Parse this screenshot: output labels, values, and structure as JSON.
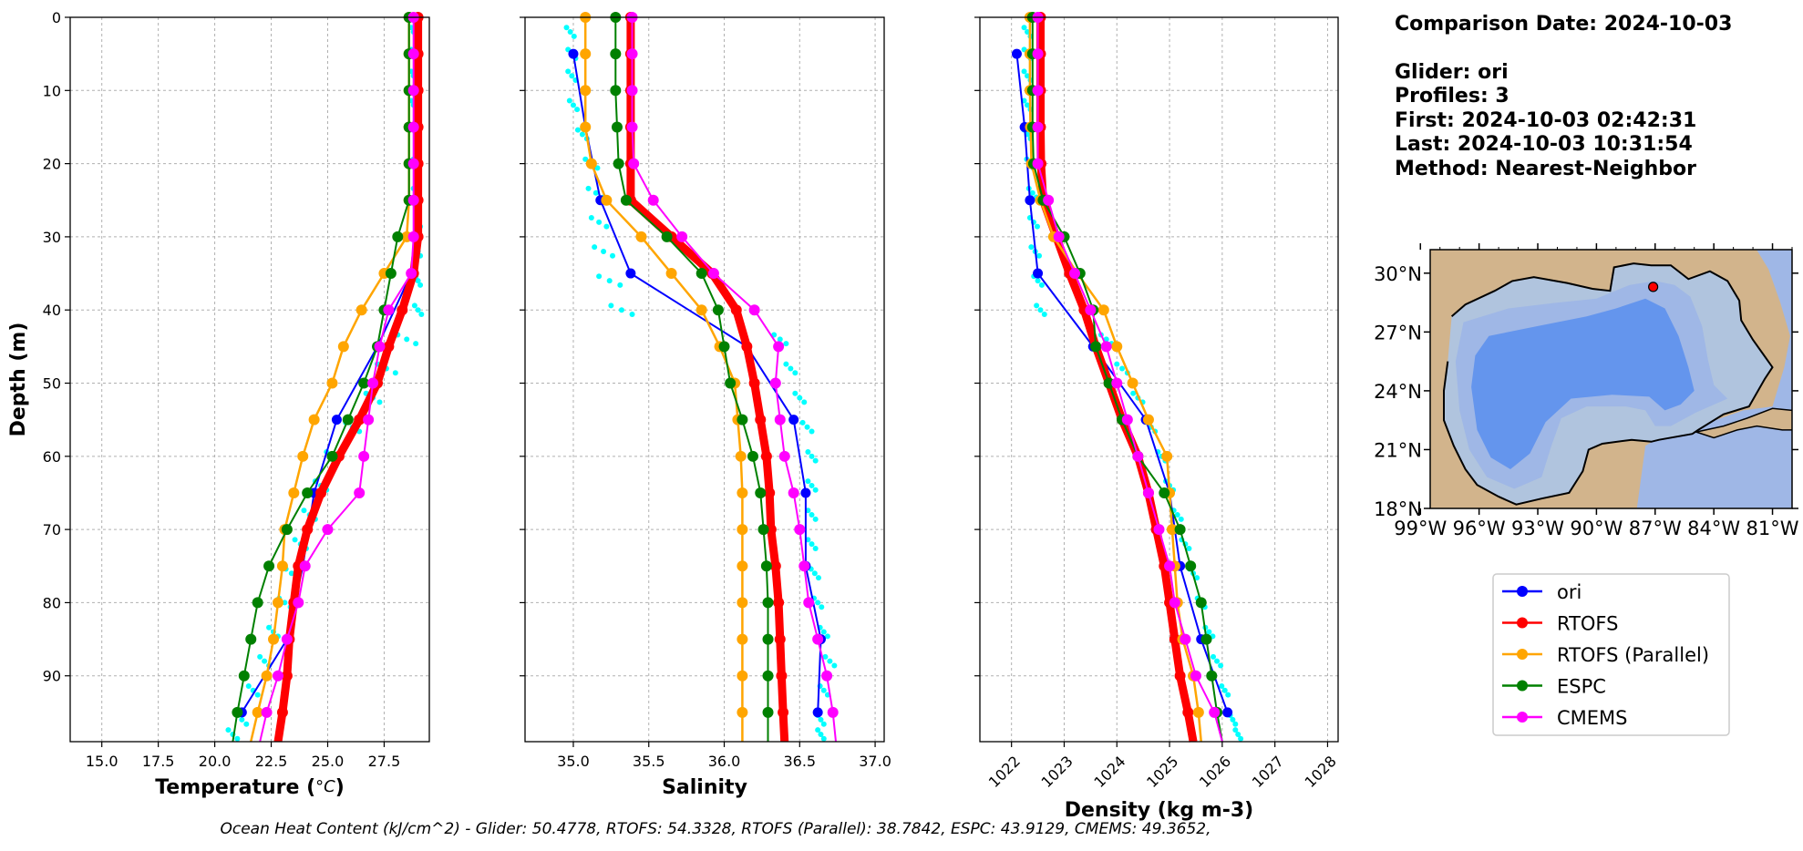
{
  "info": {
    "comparison_date": "Comparison Date: 2024-10-03",
    "glider": "Glider: ori",
    "profiles": "Profiles: 3",
    "first": "First: 2024-10-03 02:42:31",
    "last": "Last: 2024-10-03 10:31:54",
    "method": "Method: Nearest-Neighbor"
  },
  "footer": "Ocean Heat Content (kJ/cm^2) - Glider: 50.4778,  RTOFS: 54.3328,  RTOFS (Parallel): 38.7842,  ESPC: 43.9129,  CMEMS: 49.3652,",
  "colors": {
    "ori": "#0000ff",
    "RTOFS": "#ff0000",
    "RTOFS (Parallel)": "#ffa500",
    "ESPC": "#008000",
    "CMEMS": "#ff00ff",
    "glider_raw": "#00ffff",
    "land": "#d2b48c",
    "shelf": "#b0c4de",
    "mid": "#9fb7e6",
    "deep": "#6495ed"
  },
  "legend": [
    "ori",
    "RTOFS",
    "RTOFS (Parallel)",
    "ESPC",
    "CMEMS"
  ],
  "map": {
    "lat_ticks": [
      "30°N",
      "27°N",
      "24°N",
      "21°N",
      "18°N"
    ],
    "lon_ticks": [
      "99°W",
      "96°W",
      "93°W",
      "90°W",
      "87°W",
      "84°W",
      "81°W"
    ],
    "lon_range": [
      -98.5,
      -80
    ],
    "lat_range": [
      18,
      31.2
    ],
    "glider_position": [
      -87.1,
      29.3
    ]
  },
  "chart_data": [
    {
      "type": "line",
      "xlabel": "Temperature (°C)",
      "ylabel": "Depth (m)",
      "xlim": [
        13.6,
        29.5
      ],
      "ylim": [
        99,
        0
      ],
      "xticks": [
        "15.0",
        "17.5",
        "20.0",
        "22.5",
        "25.0",
        "27.5"
      ],
      "yticks": [
        "0",
        "10",
        "20",
        "30",
        "40",
        "50",
        "60",
        "70",
        "80",
        "90"
      ],
      "depth": [
        0,
        5,
        10,
        15,
        20,
        25,
        30,
        35,
        40,
        45,
        50,
        55,
        60,
        65,
        70,
        75,
        80,
        85,
        90,
        95,
        99
      ],
      "series": [
        {
          "name": "ori",
          "depth": [
            35,
            45,
            55,
            65,
            75,
            85,
            95
          ],
          "values": [
            28.7,
            27.2,
            25.4,
            24.4,
            23.9,
            23.2,
            21.2
          ]
        },
        {
          "name": "RTOFS",
          "values": [
            29.0,
            29.0,
            29.0,
            29.0,
            29.0,
            29.0,
            29.0,
            28.8,
            28.3,
            27.7,
            27.2,
            26.4,
            25.5,
            24.7,
            24.1,
            23.7,
            23.5,
            23.3,
            23.2,
            23.0,
            22.8
          ]
        },
        {
          "name": "RTOFS (Parallel)",
          "values": [
            28.6,
            28.6,
            28.6,
            28.6,
            28.6,
            28.6,
            28.5,
            27.5,
            26.5,
            25.7,
            25.2,
            24.4,
            23.9,
            23.5,
            23.1,
            23.0,
            22.8,
            22.6,
            22.3,
            21.9,
            21.6
          ]
        },
        {
          "name": "ESPC",
          "values": [
            28.6,
            28.6,
            28.6,
            28.6,
            28.6,
            28.6,
            28.1,
            27.8,
            27.5,
            27.2,
            26.6,
            25.9,
            25.2,
            24.1,
            23.2,
            22.4,
            21.9,
            21.6,
            21.3,
            21.0,
            20.8
          ]
        },
        {
          "name": "CMEMS",
          "values": [
            28.8,
            28.8,
            28.8,
            28.8,
            28.8,
            28.8,
            28.8,
            28.7,
            27.7,
            27.3,
            27.0,
            26.8,
            26.6,
            26.4,
            25.0,
            24.0,
            23.7,
            23.2,
            22.8,
            22.3,
            22.0
          ]
        }
      ],
      "glider_raw": {
        "depth": [
          2,
          5,
          8,
          12,
          16,
          20,
          24,
          28,
          32,
          36,
          40,
          44,
          48,
          52,
          56,
          60,
          64,
          68,
          72,
          76,
          80,
          84,
          88,
          92,
          96,
          98
        ],
        "values": [
          28.8,
          28.8,
          28.8,
          28.8,
          28.9,
          28.9,
          28.9,
          29.0,
          29.0,
          29.0,
          29.0,
          28.5,
          27.6,
          27.0,
          26.1,
          25.2,
          24.7,
          24.2,
          23.8,
          23.4,
          23.1,
          22.6,
          22.2,
          21.7,
          21.2,
          20.8
        ],
        "spread": [
          0.2,
          0.2,
          0.2,
          0.2,
          0.2,
          0.2,
          0.2,
          0.2,
          0.2,
          0.2,
          0.3,
          0.8,
          0.8,
          0.6,
          0.6,
          0.5,
          0.5,
          0.5,
          0.5,
          0.5,
          0.5,
          0.4,
          0.4,
          0.4,
          0.4,
          0.4
        ]
      }
    },
    {
      "type": "line",
      "xlabel": "Salinity",
      "ylabel": "",
      "xlim": [
        34.68,
        37.06
      ],
      "ylim": [
        99,
        0
      ],
      "xticks": [
        "35.0",
        "35.5",
        "36.0",
        "36.5",
        "37.0"
      ],
      "depth": [
        0,
        5,
        10,
        15,
        20,
        25,
        30,
        35,
        40,
        45,
        50,
        55,
        60,
        65,
        70,
        75,
        80,
        85,
        90,
        95,
        99
      ],
      "series": [
        {
          "name": "ori",
          "depth": [
            5,
            15,
            25,
            35,
            45,
            55,
            65,
            75,
            85,
            95
          ],
          "values": [
            35.0,
            35.08,
            35.18,
            35.38,
            36.15,
            36.46,
            36.54,
            36.54,
            36.64,
            36.62
          ]
        },
        {
          "name": "RTOFS",
          "values": [
            35.38,
            35.38,
            35.38,
            35.38,
            35.38,
            35.38,
            35.65,
            35.92,
            36.08,
            36.15,
            36.2,
            36.24,
            36.28,
            36.3,
            36.31,
            36.34,
            36.36,
            36.37,
            36.38,
            36.39,
            36.4
          ]
        },
        {
          "name": "RTOFS (Parallel)",
          "values": [
            35.08,
            35.08,
            35.08,
            35.08,
            35.12,
            35.22,
            35.45,
            35.65,
            35.85,
            35.97,
            36.07,
            36.09,
            36.11,
            36.12,
            36.12,
            36.12,
            36.12,
            36.12,
            36.12,
            36.12,
            36.12
          ]
        },
        {
          "name": "ESPC",
          "values": [
            35.28,
            35.28,
            35.28,
            35.29,
            35.3,
            35.35,
            35.62,
            35.85,
            35.96,
            36.0,
            36.04,
            36.12,
            36.19,
            36.24,
            36.26,
            36.28,
            36.29,
            36.29,
            36.29,
            36.29,
            36.29
          ]
        },
        {
          "name": "CMEMS",
          "values": [
            35.39,
            35.39,
            35.39,
            35.39,
            35.4,
            35.53,
            35.72,
            35.93,
            36.2,
            36.36,
            36.34,
            36.37,
            36.4,
            36.46,
            36.5,
            36.53,
            36.56,
            36.62,
            36.68,
            36.72,
            36.74
          ]
        }
      ],
      "glider_raw": {
        "depth": [
          2,
          5,
          8,
          12,
          16,
          20,
          24,
          28,
          32,
          36,
          40,
          44,
          48,
          52,
          56,
          60,
          64,
          68,
          72,
          76,
          80,
          84,
          88,
          92,
          96,
          98
        ],
        "values": [
          34.98,
          34.99,
          34.99,
          35.0,
          35.06,
          35.12,
          35.15,
          35.17,
          35.2,
          35.24,
          35.32,
          36.37,
          36.44,
          36.5,
          36.55,
          36.58,
          36.58,
          36.58,
          36.58,
          36.6,
          36.62,
          36.66,
          36.7,
          36.66,
          36.64,
          36.64
        ],
        "spread": [
          0.05,
          0.05,
          0.05,
          0.05,
          0.06,
          0.08,
          0.1,
          0.1,
          0.12,
          0.14,
          0.14,
          0.08,
          0.06,
          0.06,
          0.06,
          0.05,
          0.05,
          0.05,
          0.05,
          0.05,
          0.05,
          0.05,
          0.06,
          0.05,
          0.04,
          0.04
        ]
      }
    },
    {
      "type": "line",
      "xlabel": "Density (kg m-3)",
      "ylabel": "",
      "xlim": [
        1021.4,
        1028.2
      ],
      "ylim": [
        99,
        0
      ],
      "xticks": [
        "1022",
        "1023",
        "1024",
        "1025",
        "1026",
        "1027",
        "1028"
      ],
      "depth": [
        0,
        5,
        10,
        15,
        20,
        25,
        30,
        35,
        40,
        45,
        50,
        55,
        60,
        65,
        70,
        75,
        80,
        85,
        90,
        95,
        99
      ],
      "series": [
        {
          "name": "ori",
          "depth": [
            5,
            15,
            25,
            35,
            45,
            55,
            65,
            75,
            85,
            95
          ],
          "values": [
            1022.1,
            1022.25,
            1022.35,
            1022.5,
            1023.55,
            1024.55,
            1025.0,
            1025.2,
            1025.6,
            1026.1
          ]
        },
        {
          "name": "RTOFS",
          "values": [
            1022.55,
            1022.55,
            1022.55,
            1022.55,
            1022.56,
            1022.6,
            1022.85,
            1023.1,
            1023.38,
            1023.6,
            1023.85,
            1024.1,
            1024.4,
            1024.6,
            1024.75,
            1024.9,
            1025.0,
            1025.1,
            1025.2,
            1025.35,
            1025.45
          ]
        },
        {
          "name": "RTOFS (Parallel)",
          "values": [
            1022.35,
            1022.35,
            1022.35,
            1022.36,
            1022.38,
            1022.55,
            1022.8,
            1023.25,
            1023.75,
            1024.0,
            1024.3,
            1024.6,
            1024.95,
            1025.0,
            1025.05,
            1025.1,
            1025.15,
            1025.25,
            1025.45,
            1025.55,
            1025.6
          ]
        },
        {
          "name": "ESPC",
          "values": [
            1022.4,
            1022.4,
            1022.4,
            1022.4,
            1022.42,
            1022.6,
            1023.0,
            1023.3,
            1023.55,
            1023.6,
            1023.85,
            1024.1,
            1024.4,
            1024.9,
            1025.2,
            1025.4,
            1025.6,
            1025.7,
            1025.8,
            1025.9,
            1026.0
          ]
        },
        {
          "name": "CMEMS",
          "values": [
            1022.5,
            1022.5,
            1022.5,
            1022.5,
            1022.5,
            1022.7,
            1022.9,
            1023.2,
            1023.5,
            1023.8,
            1024.0,
            1024.2,
            1024.4,
            1024.6,
            1024.8,
            1025.0,
            1025.1,
            1025.3,
            1025.5,
            1025.85,
            1026.0
          ]
        }
      ],
      "glider_raw": {
        "depth": [
          2,
          5,
          8,
          12,
          16,
          20,
          24,
          28,
          32,
          36,
          40,
          44,
          48,
          52,
          56,
          60,
          64,
          68,
          72,
          76,
          80,
          84,
          88,
          92,
          96,
          98
        ],
        "values": [
          1022.3,
          1022.3,
          1022.3,
          1022.3,
          1022.3,
          1022.35,
          1022.4,
          1022.42,
          1022.45,
          1022.5,
          1022.55,
          1023.8,
          1024.1,
          1024.4,
          1024.65,
          1024.85,
          1025.0,
          1025.15,
          1025.3,
          1025.45,
          1025.6,
          1025.75,
          1025.9,
          1026.05,
          1026.2,
          1026.3
        ],
        "spread": [
          0.12,
          0.12,
          0.12,
          0.12,
          0.12,
          0.12,
          0.14,
          0.14,
          0.15,
          0.15,
          0.15,
          0.2,
          0.2,
          0.18,
          0.15,
          0.14,
          0.14,
          0.14,
          0.14,
          0.14,
          0.14,
          0.14,
          0.14,
          0.12,
          0.1,
          0.1
        ]
      }
    }
  ]
}
